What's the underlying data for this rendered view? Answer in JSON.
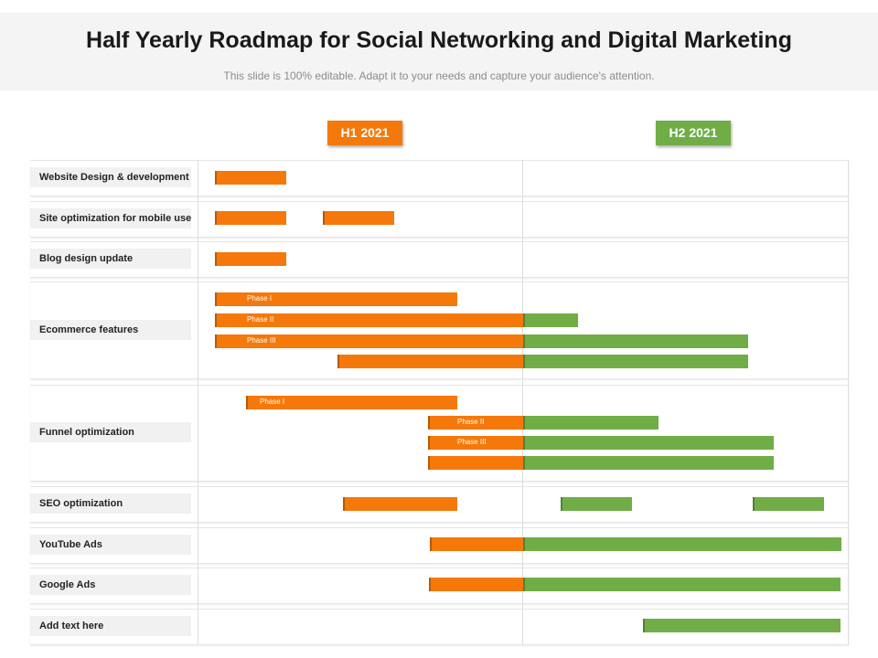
{
  "header": {
    "title": "Half Yearly Roadmap for Social Networking and Digital Marketing",
    "subtitle": "This slide is 100% editable. Adapt it to your needs and capture your audience's attention."
  },
  "colors": {
    "h1": "#f5780a",
    "h2": "#70ad47"
  },
  "periods": [
    "H1 2021",
    "H2 2021"
  ],
  "rows": [
    {
      "label": "Website Design & development"
    },
    {
      "label": "Site optimization for mobile use"
    },
    {
      "label": "Blog design update"
    },
    {
      "label": "Ecommerce features"
    },
    {
      "label": "Funnel optimization"
    },
    {
      "label": "SEO  optimization"
    },
    {
      "label": "YouTube Ads"
    },
    {
      "label": "Google Ads"
    },
    {
      "label": "Add text here"
    }
  ],
  "phase_labels": [
    "Phase  I",
    "Phase  II",
    "Phase  III"
  ]
}
